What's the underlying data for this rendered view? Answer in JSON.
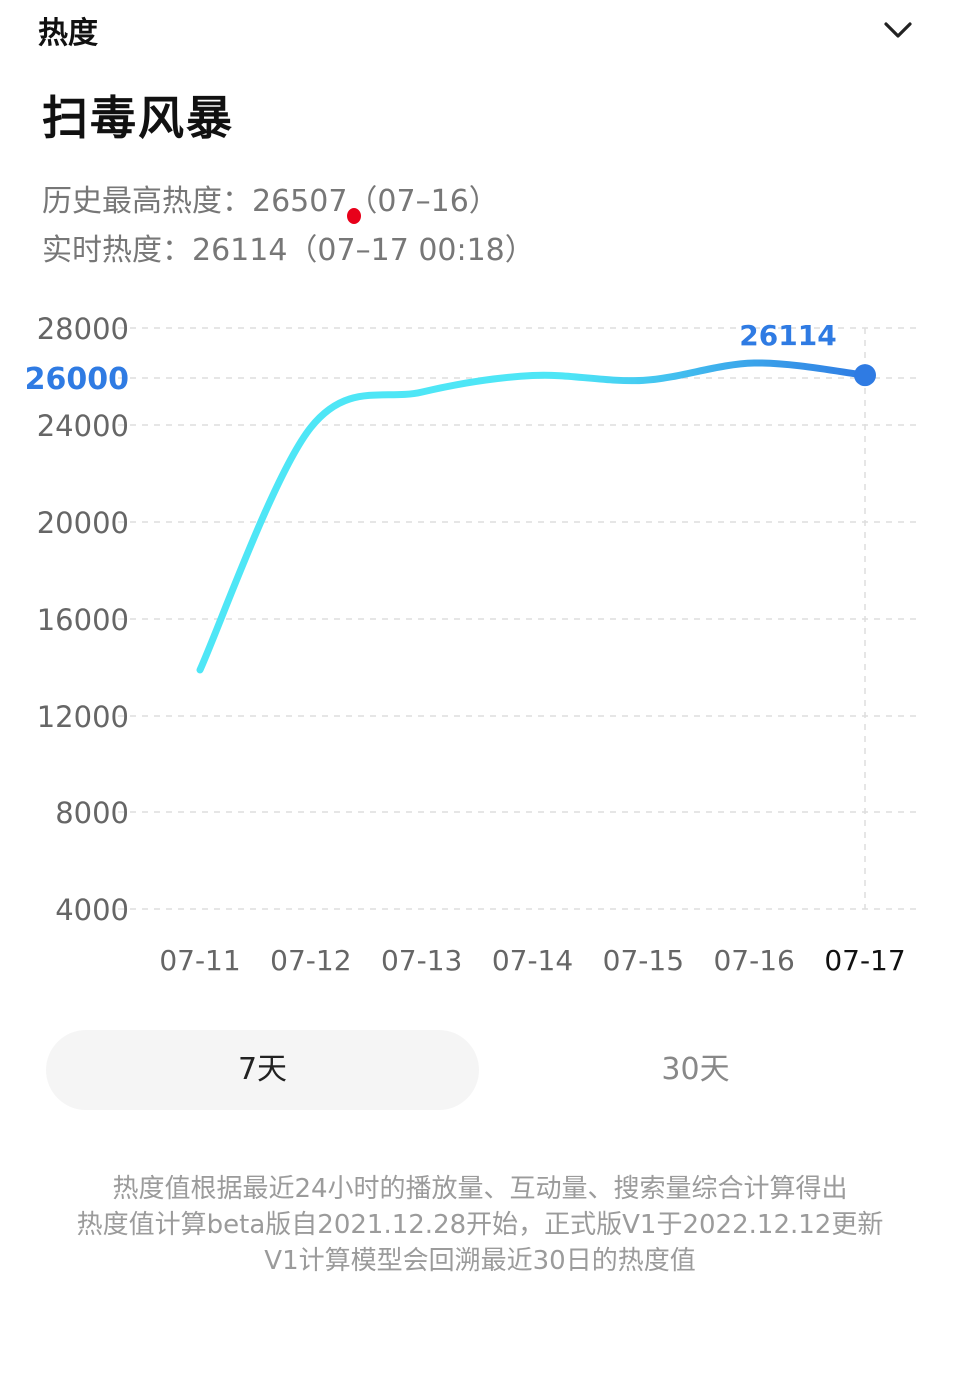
{
  "header": {
    "title": "热度",
    "collapse_icon": "chevron-down-icon"
  },
  "topic": {
    "title": "扫毒风暴"
  },
  "stats": {
    "history_max": "历史最高热度：26507（07–16）",
    "realtime": "实时热度：26114（07–17 00:18）"
  },
  "chart_data": {
    "type": "line",
    "x": [
      "07-11",
      "07-12",
      "07-13",
      "07-14",
      "07-15",
      "07-16",
      "07-17"
    ],
    "series": [
      {
        "values": [
          13900,
          23900,
          25400,
          26100,
          25900,
          26600,
          26114
        ]
      }
    ],
    "y_ticks": [
      4000,
      8000,
      12000,
      16000,
      20000,
      24000,
      26000,
      28000
    ],
    "highlight_tick": 26000,
    "end_label": "26114",
    "ylim": [
      4000,
      28000
    ],
    "grid": true,
    "colors": {
      "line_start": "#4ee6f6",
      "line_end": "#2f7be3",
      "accent": "#2f7be3"
    }
  },
  "tabs": [
    {
      "label": "7天",
      "active": true
    },
    {
      "label": "30天",
      "active": false
    }
  ],
  "notes": [
    "热度值根据最近24小时的播放量、互动量、搜索量综合计算得出",
    "热度值计算beta版自2021.12.28开始，正式版V1于2022.12.12更新",
    "V1计算模型会回溯最近30日的热度值"
  ]
}
